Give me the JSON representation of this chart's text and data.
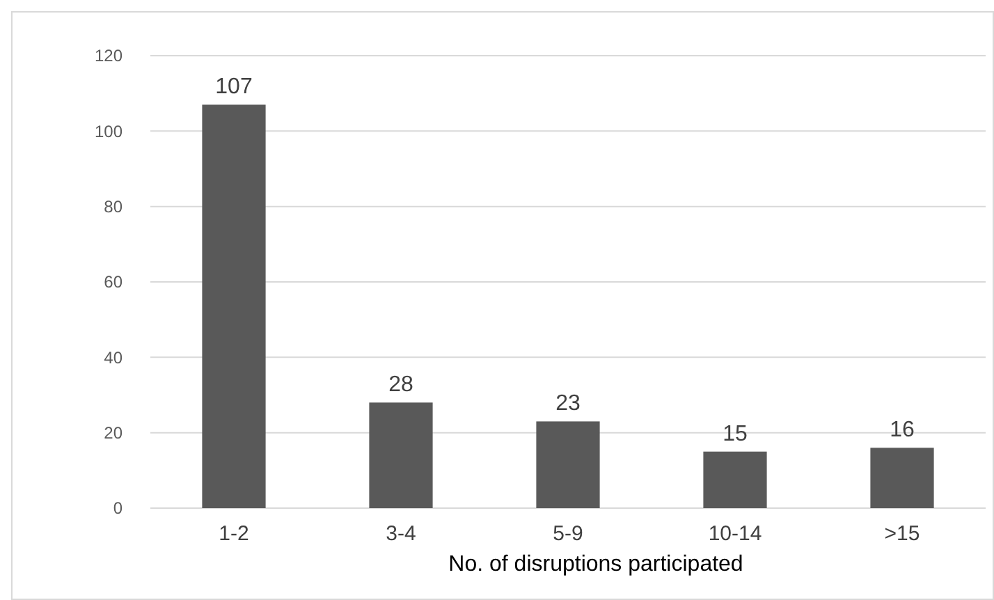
{
  "chart_data": {
    "type": "bar",
    "xlabel": "No. of disruptions participated",
    "categories": [
      "1-2",
      "3-4",
      "5-9",
      "10-14",
      ">15"
    ],
    "values": [
      107,
      28,
      23,
      15,
      16
    ],
    "color": "#595959",
    "ylim": [
      0,
      120
    ],
    "yticks": [
      0,
      20,
      40,
      60,
      80,
      100,
      120
    ],
    "grid": "y",
    "data_labels": true
  }
}
